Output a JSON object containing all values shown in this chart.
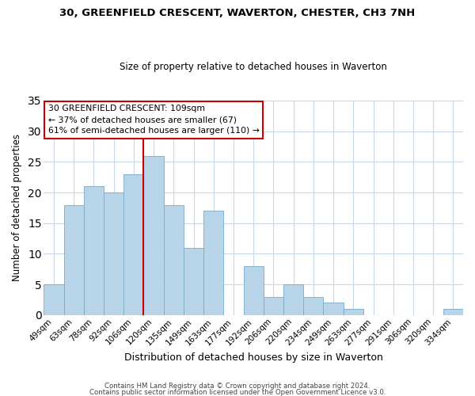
{
  "title": "30, GREENFIELD CRESCENT, WAVERTON, CHESTER, CH3 7NH",
  "subtitle": "Size of property relative to detached houses in Waverton",
  "xlabel": "Distribution of detached houses by size in Waverton",
  "ylabel": "Number of detached properties",
  "footer1": "Contains HM Land Registry data © Crown copyright and database right 2024.",
  "footer2": "Contains public sector information licensed under the Open Government Licence v3.0.",
  "categories": [
    "49sqm",
    "63sqm",
    "78sqm",
    "92sqm",
    "106sqm",
    "120sqm",
    "135sqm",
    "149sqm",
    "163sqm",
    "177sqm",
    "192sqm",
    "206sqm",
    "220sqm",
    "234sqm",
    "249sqm",
    "263sqm",
    "277sqm",
    "291sqm",
    "306sqm",
    "320sqm",
    "334sqm"
  ],
  "values": [
    5,
    18,
    21,
    20,
    23,
    26,
    18,
    11,
    17,
    0,
    8,
    3,
    5,
    3,
    2,
    1,
    0,
    0,
    0,
    0,
    1
  ],
  "bar_color": "#b8d4e8",
  "bar_edge_color": "#7aaac8",
  "vline_color": "#cc0000",
  "vline_x_index": 4.5,
  "ylim": [
    0,
    35
  ],
  "yticks": [
    0,
    5,
    10,
    15,
    20,
    25,
    30,
    35
  ],
  "annotation_title": "30 GREENFIELD CRESCENT: 109sqm",
  "annotation_line1": "← 37% of detached houses are smaller (67)",
  "annotation_line2": "61% of semi-detached houses are larger (110) →",
  "annotation_box_color": "#ffffff",
  "annotation_border_color": "#cc0000",
  "background_color": "#ffffff",
  "grid_color": "#c8d8e8",
  "title_fontsize": 9.5,
  "subtitle_fontsize": 8.5
}
